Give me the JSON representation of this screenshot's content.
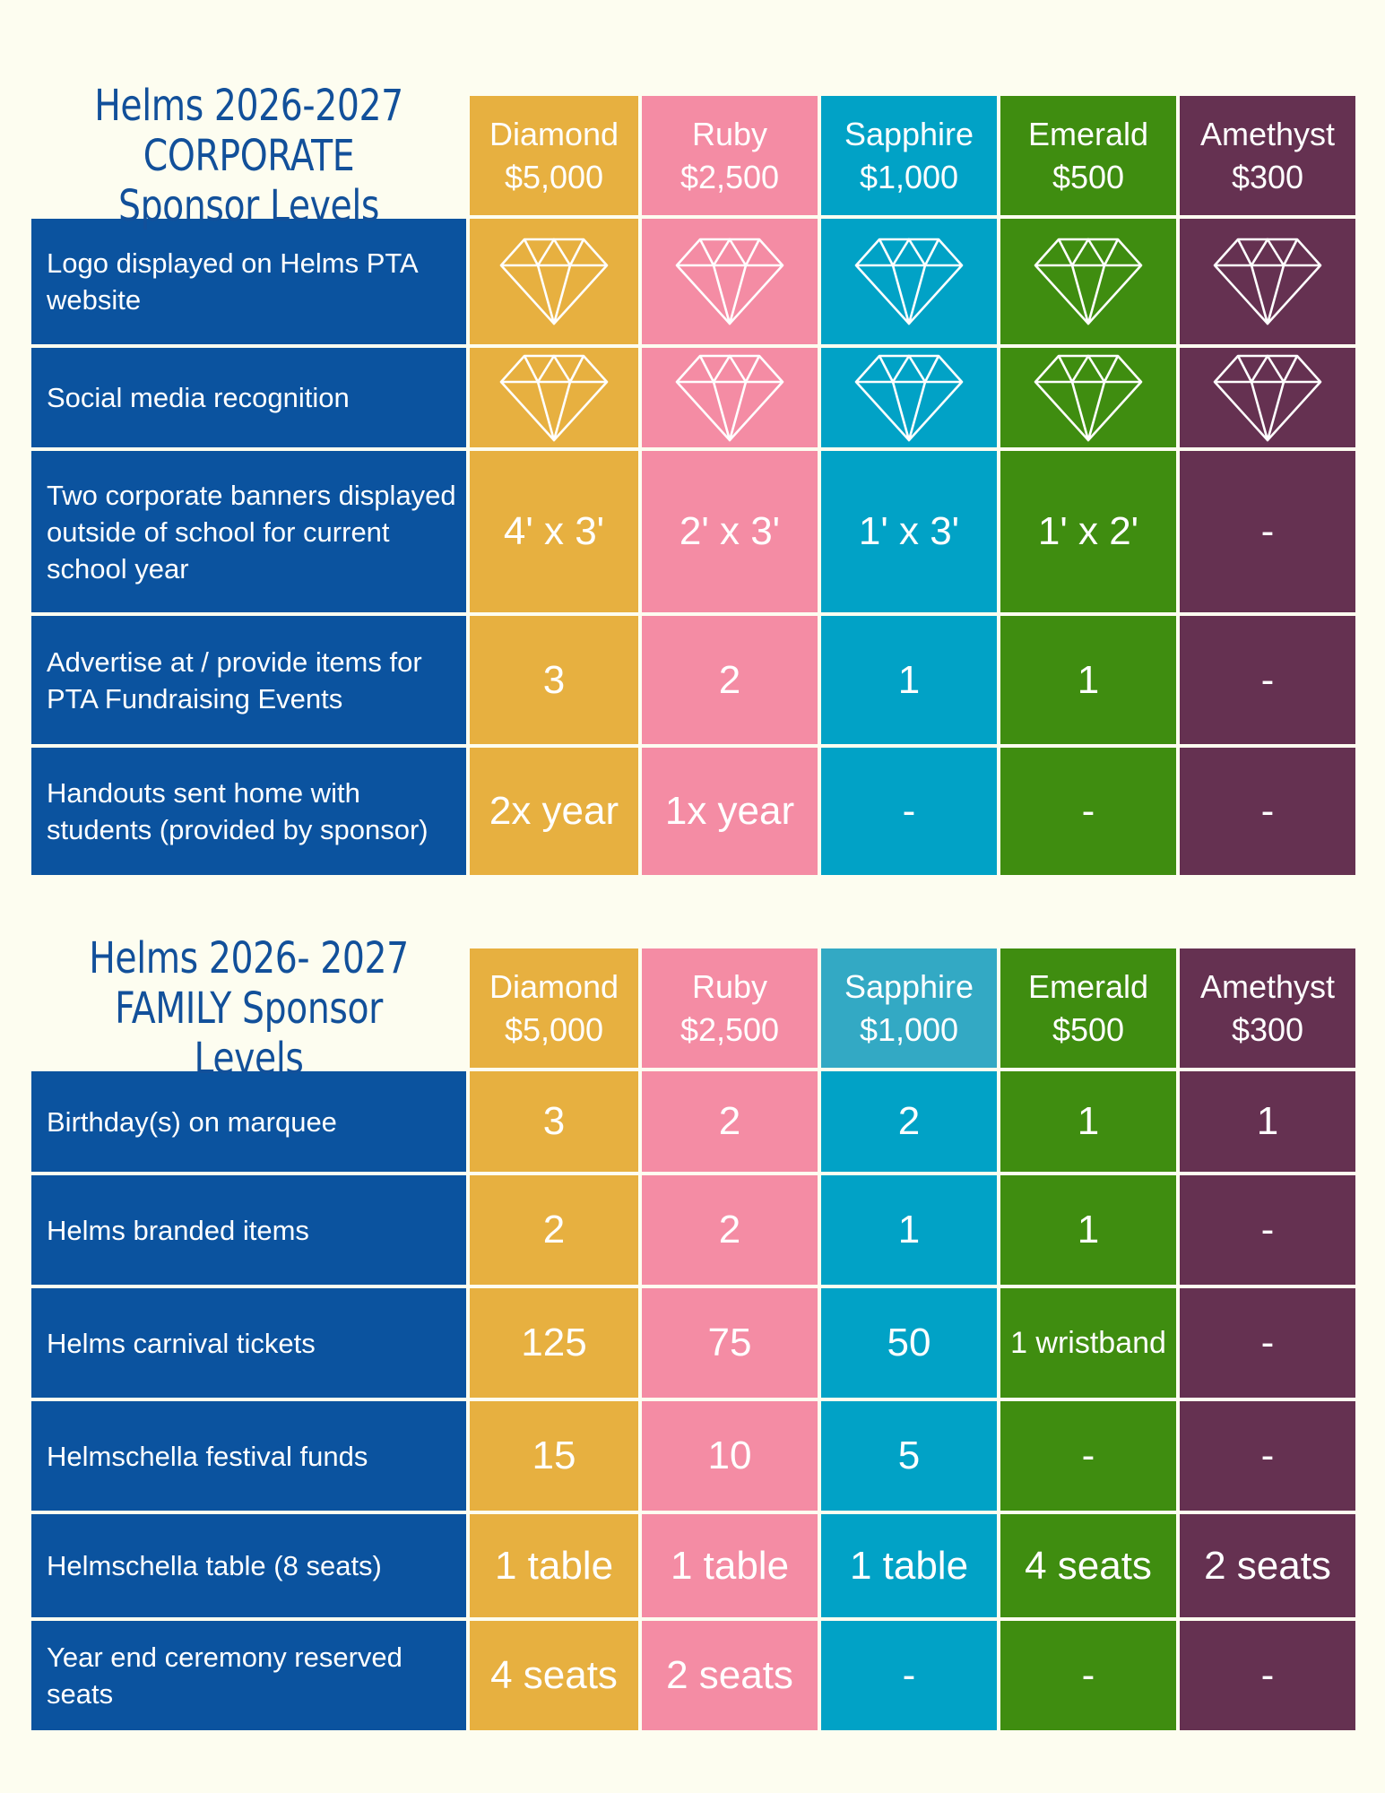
{
  "corporate": {
    "title_line1": "Helms 2026-2027",
    "title_line2": "CORPORATE Sponsor Levels",
    "levels": [
      {
        "name": "Diamond",
        "price": "$5,000"
      },
      {
        "name": "Ruby",
        "price": "$2,500"
      },
      {
        "name": "Sapphire",
        "price": "$1,000"
      },
      {
        "name": "Emerald",
        "price": "$500"
      },
      {
        "name": "Amethyst",
        "price": "$300"
      }
    ],
    "rows": [
      {
        "feature": "Logo displayed on Helms PTA website",
        "values": [
          "diamond-icon",
          "diamond-icon",
          "diamond-icon",
          "diamond-icon",
          "diamond-icon"
        ]
      },
      {
        "feature": "Social media recognition",
        "values": [
          "diamond-icon",
          "diamond-icon",
          "diamond-icon",
          "diamond-icon",
          "diamond-icon"
        ]
      },
      {
        "feature": "Two corporate banners displayed outside of school for current school year",
        "values": [
          "4' x 3'",
          "2' x 3'",
          "1' x 3'",
          "1' x 2'",
          "-"
        ]
      },
      {
        "feature": "Advertise at / provide items for PTA Fundraising Events",
        "values": [
          "3",
          "2",
          "1",
          "1",
          "-"
        ]
      },
      {
        "feature": "Handouts sent home with students (provided by sponsor)",
        "values": [
          "2x year",
          "1x year",
          "-",
          "-",
          "-"
        ]
      }
    ]
  },
  "family": {
    "title_line1": "Helms 2026- 2027",
    "title_line2": "FAMILY Sponsor Levels",
    "levels": [
      {
        "name": "Diamond",
        "price": "$5,000"
      },
      {
        "name": "Ruby",
        "price": "$2,500"
      },
      {
        "name": "Sapphire",
        "price": "$1,000"
      },
      {
        "name": "Emerald",
        "price": "$500"
      },
      {
        "name": "Amethyst",
        "price": "$300"
      }
    ],
    "rows": [
      {
        "feature": "Birthday(s) on marquee",
        "values": [
          "3",
          "2",
          "2",
          "1",
          "1"
        ]
      },
      {
        "feature": "Helms branded items",
        "values": [
          "2",
          "2",
          "1",
          "1",
          "-"
        ]
      },
      {
        "feature": "Helms carnival tickets",
        "values": [
          "125",
          "75",
          "50",
          "1 wristband",
          "-"
        ]
      },
      {
        "feature": "Helmschella festival funds",
        "values": [
          "15",
          "10",
          "5",
          "-",
          "-"
        ]
      },
      {
        "feature": "Helmschella table (8 seats)",
        "values": [
          "1 table",
          "1 table",
          "1 table",
          "4 seats",
          "2 seats"
        ]
      },
      {
        "feature": "Year end ceremony reserved seats",
        "values": [
          "4 seats",
          "2 seats",
          "-",
          "-",
          "-"
        ]
      }
    ]
  },
  "colors": {
    "diamond": "#e7b040",
    "ruby": "#f48ca4",
    "sapphire": "#01a2c6",
    "emerald": "#3f8d10",
    "amethyst": "#653151",
    "feature_bg": "#0b539f",
    "title_text": "#12509a",
    "background": "#fdfdf0"
  }
}
